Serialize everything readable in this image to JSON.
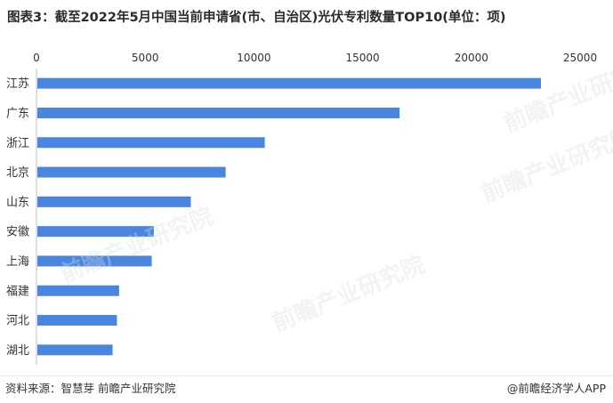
{
  "title": "图表3：截至2022年5月中国当前申请省(市、自治区)光伏专利数量TOP10(单位：项)",
  "footer": {
    "source": "资料来源：智慧芽 前瞻产业研究院",
    "app": "@前瞻经济学人APP"
  },
  "watermark": {
    "text": "前瞻产业研究院"
  },
  "chart_data": {
    "type": "bar",
    "orientation": "horizontal",
    "title": "图表3：截至2022年5月中国当前申请省(市、自治区)光伏专利数量TOP10(单位：项)",
    "categories": [
      "江苏",
      "广东",
      "浙江",
      "北京",
      "山东",
      "安徽",
      "上海",
      "福建",
      "河北",
      "湖北"
    ],
    "values": [
      23200,
      16700,
      10500,
      8700,
      7100,
      5400,
      5300,
      3800,
      3700,
      3500
    ],
    "xlim": [
      0,
      25000
    ],
    "xticks": [
      "0",
      "5000",
      "10000",
      "15000",
      "20000",
      "25000"
    ],
    "xtick_values": [
      0,
      5000,
      10000,
      15000,
      20000,
      25000
    ],
    "grid": false,
    "legend": "none",
    "bar_color": "#4a86e0"
  }
}
